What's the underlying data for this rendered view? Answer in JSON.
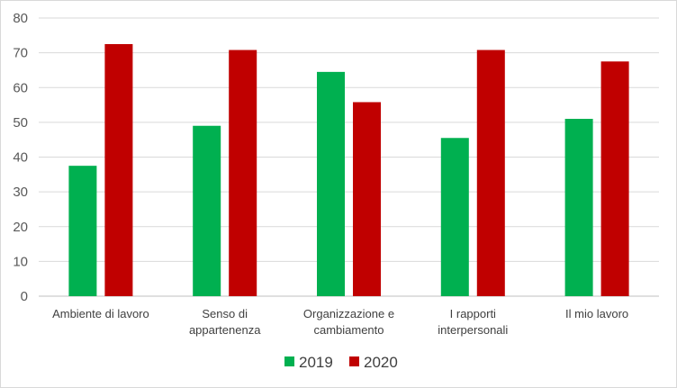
{
  "chart_data": {
    "type": "bar",
    "categories": [
      [
        "Ambiente di lavoro"
      ],
      [
        "Senso di",
        "appartenenza"
      ],
      [
        "Organizzazione e",
        "cambiamento"
      ],
      [
        "I rapporti",
        "interpersonali"
      ],
      [
        "Il mio lavoro"
      ]
    ],
    "series": [
      {
        "name": "2019",
        "color": "#00b050",
        "values": [
          37.5,
          49,
          64.5,
          45.5,
          51
        ]
      },
      {
        "name": "2020",
        "color": "#c00000",
        "values": [
          72.5,
          70.8,
          55.8,
          70.8,
          67.5
        ]
      }
    ],
    "yticks": [
      "0",
      "10",
      "20",
      "30",
      "40",
      "50",
      "60",
      "70",
      "80"
    ],
    "ylim": [
      0,
      80
    ],
    "grid": true,
    "legend_position": "bottom",
    "title": "",
    "xlabel": "",
    "ylabel": ""
  }
}
